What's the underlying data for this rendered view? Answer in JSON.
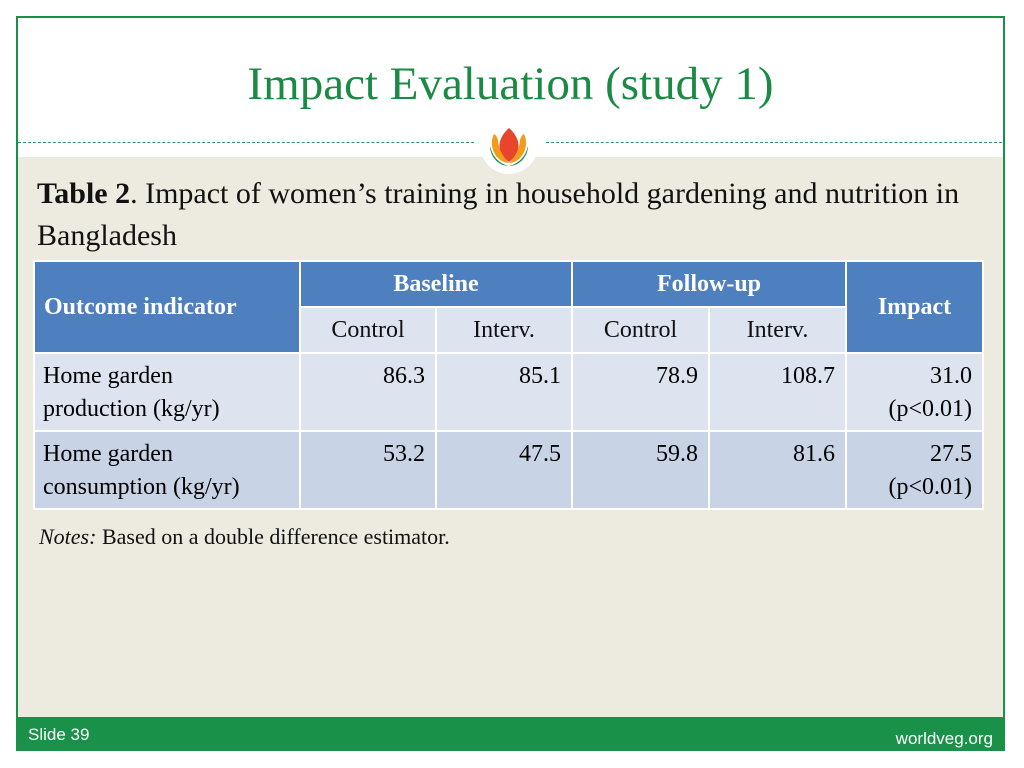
{
  "title": "Impact Evaluation (study 1)",
  "caption": {
    "bold": "Table 2",
    "text": ". Impact of women’s training in household gardening and nutrition in Bangladesh"
  },
  "table": {
    "outcome_header": "Outcome indicator",
    "baseline_header": "Baseline",
    "followup_header": "Follow-up",
    "impact_header": "Impact",
    "sub_headers": [
      "Control",
      "Interv.",
      "Control",
      "Interv."
    ],
    "rows": [
      {
        "label_line1": "Home garden",
        "label_line2": "production (kg/yr)",
        "baseline_control": "86.3",
        "baseline_interv": "85.1",
        "followup_control": "78.9",
        "followup_interv": "108.7",
        "impact_value": "31.0",
        "impact_p": "(p<0.01)"
      },
      {
        "label_line1": "Home garden",
        "label_line2": "consumption (kg/yr)",
        "baseline_control": "53.2",
        "baseline_interv": "47.5",
        "followup_control": "59.8",
        "followup_interv": "81.6",
        "impact_value": "27.5",
        "impact_p": "(p<0.01)"
      }
    ]
  },
  "notes": {
    "label": "Notes:",
    "text": " Based on a double difference estimator."
  },
  "footer": {
    "slide": "Slide 39",
    "site": "worldveg.org"
  },
  "colors": {
    "brand_green": "#1a9148",
    "header_blue": "#4e7fbe",
    "row_light": "#dde3ef",
    "row_dark": "#c9d3e6",
    "background": "#edeae0"
  }
}
